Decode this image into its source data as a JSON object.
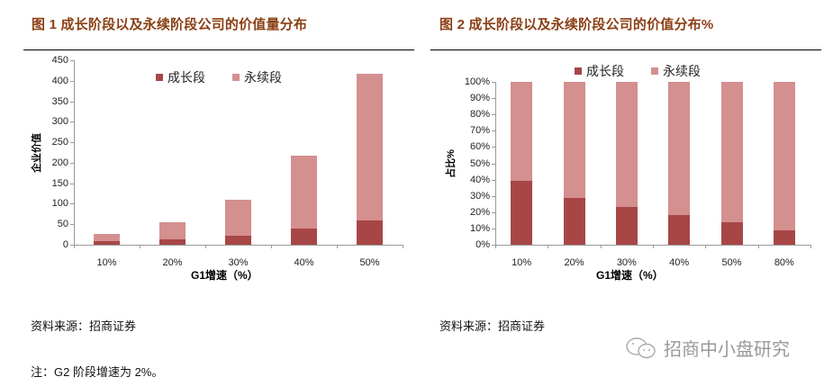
{
  "figure1": {
    "title": "图 1  成长阶段以及永续阶段公司的价值量分布",
    "source": "资料来源：招商证券",
    "note": "注：G2 阶段增速为 2%。"
  },
  "figure2": {
    "title": "图 2  成长阶段以及永续阶段公司的价值分布%",
    "source": "资料来源：招商证券"
  },
  "watermark": {
    "icon": "wechat-icon",
    "text": "招商中小盘研究"
  },
  "colors": {
    "title": "#8a3f14",
    "growth": "#a84646",
    "perpetual": "#d48f8f"
  },
  "chart_data": [
    {
      "type": "bar",
      "stacked": true,
      "title": "图 1  成长阶段以及永续阶段公司的价值量分布",
      "xlabel": "G1增速（%）",
      "ylabel": "企业价值",
      "categories": [
        "10%",
        "20%",
        "30%",
        "40%",
        "50%"
      ],
      "yticks": [
        "0",
        "50",
        "100",
        "150",
        "200",
        "250",
        "300",
        "350",
        "400",
        "450"
      ],
      "ylim": [
        0,
        450
      ],
      "legend_position": "top",
      "grid": false,
      "series": [
        {
          "name": "成长段",
          "values": [
            9,
            13,
            22,
            39,
            60
          ]
        },
        {
          "name": "永续段",
          "values": [
            17,
            42,
            88,
            178,
            357
          ]
        }
      ],
      "totals": [
        26,
        55,
        110,
        217,
        417
      ]
    },
    {
      "type": "bar",
      "stacked": true,
      "percent": true,
      "title": "图 2  成长阶段以及永续阶段公司的价值分布%",
      "xlabel": "G1增速（%）",
      "ylabel": "占比%",
      "categories": [
        "10%",
        "20%",
        "30%",
        "40%",
        "50%",
        "80%"
      ],
      "yticks": [
        "0%",
        "10%",
        "20%",
        "30%",
        "40%",
        "50%",
        "60%",
        "70%",
        "80%",
        "90%",
        "100%"
      ],
      "ylim": [
        0,
        100
      ],
      "legend_position": "top",
      "grid": false,
      "series": [
        {
          "name": "成长段",
          "values": [
            39,
            29,
            23,
            18,
            14,
            9
          ]
        },
        {
          "name": "永续段",
          "values": [
            61,
            71,
            77,
            82,
            86,
            91
          ]
        }
      ]
    }
  ]
}
